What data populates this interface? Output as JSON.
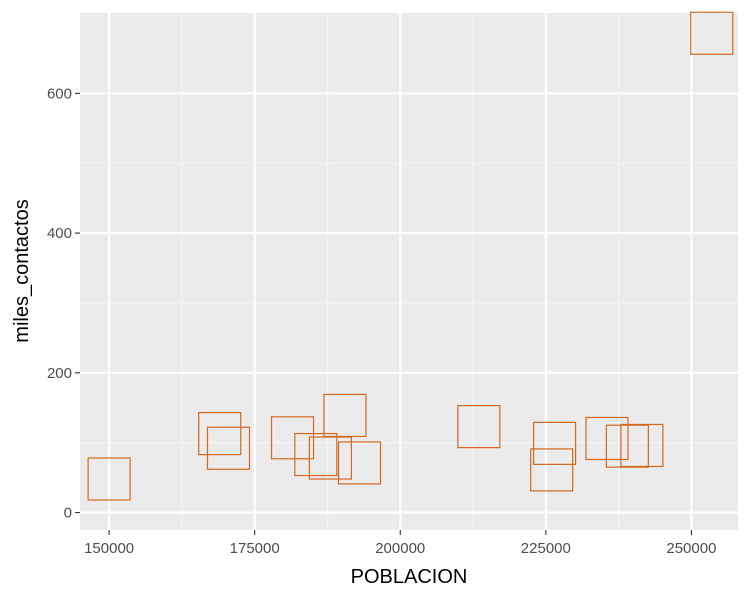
{
  "chart_data": {
    "type": "scatter",
    "title": "",
    "xlabel": "POBLACION",
    "ylabel": "miles_contactos",
    "xlim": [
      145000,
      258000
    ],
    "ylim": [
      -25,
      715
    ],
    "x_ticks": [
      150000,
      175000,
      200000,
      225000,
      250000
    ],
    "y_ticks": [
      0,
      200,
      400,
      600
    ],
    "x_tick_labels": [
      "150000",
      "175000",
      "200000",
      "225000",
      "250000"
    ],
    "y_tick_labels": [
      "0",
      "200",
      "400",
      "600"
    ],
    "grid": true,
    "legend": "none",
    "marker": "open-square",
    "colors": {
      "marker": "#d2691e",
      "panel": "#ebebeb",
      "grid_major": "#ffffff",
      "grid_minor": "#f5f5f5",
      "tick_text": "#4d4d4d"
    },
    "points": [
      {
        "x": 150000,
        "y": 48
      },
      {
        "x": 169000,
        "y": 113
      },
      {
        "x": 170500,
        "y": 92
      },
      {
        "x": 181500,
        "y": 107
      },
      {
        "x": 185500,
        "y": 83
      },
      {
        "x": 188000,
        "y": 78
      },
      {
        "x": 190500,
        "y": 139
      },
      {
        "x": 193000,
        "y": 71
      },
      {
        "x": 213500,
        "y": 123
      },
      {
        "x": 226500,
        "y": 99
      },
      {
        "x": 226000,
        "y": 61
      },
      {
        "x": 235500,
        "y": 106
      },
      {
        "x": 239000,
        "y": 95
      },
      {
        "x": 241500,
        "y": 96
      },
      {
        "x": 253500,
        "y": 686
      }
    ]
  }
}
